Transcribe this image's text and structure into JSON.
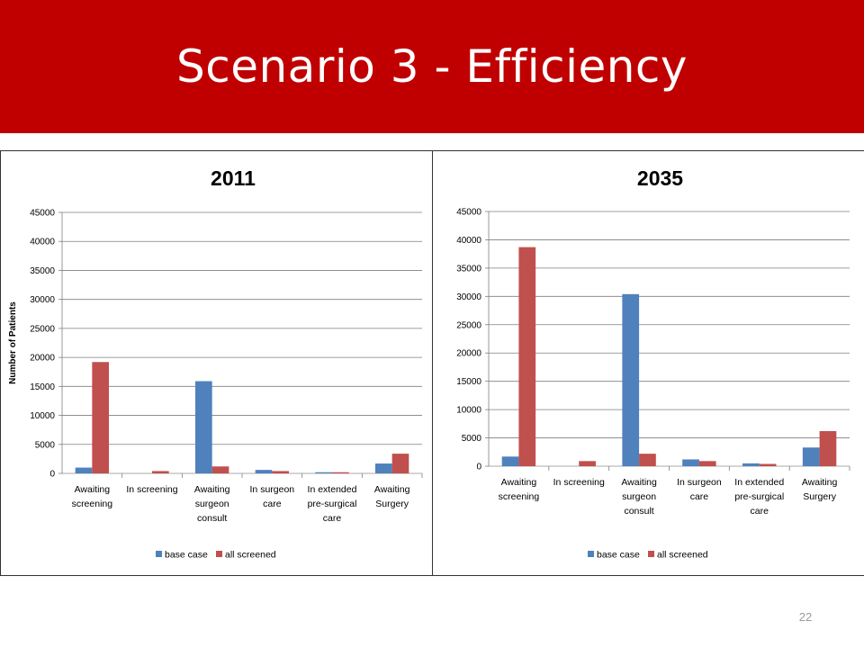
{
  "slide": {
    "title": "Scenario 3 - Efficiency",
    "page_number": "22"
  },
  "colors": {
    "title_bar": "#c00000",
    "base_case": "#4f81bd",
    "all_screened": "#c0504d"
  },
  "chart_data": [
    {
      "type": "bar",
      "title": "2011",
      "ylabel": "Number of Patients",
      "xlabel": "",
      "categories": [
        [
          "Awaiting",
          "screening"
        ],
        [
          "In screening"
        ],
        [
          "Awaiting",
          "surgeon",
          "consult"
        ],
        [
          "In surgeon",
          "care"
        ],
        [
          "In extended",
          "pre-surgical",
          "care"
        ],
        [
          "Awaiting",
          "Surgery"
        ]
      ],
      "series": [
        {
          "name": "base case",
          "values": [
            1000,
            0,
            15900,
            600,
            200,
            1700
          ]
        },
        {
          "name": "all screened",
          "values": [
            19200,
            400,
            1200,
            400,
            200,
            3400
          ]
        }
      ],
      "ylim": [
        0,
        45000
      ],
      "yticks": [
        "0",
        "5000",
        "10000",
        "15000",
        "20000",
        "25000",
        "30000",
        "35000",
        "40000",
        "45000"
      ],
      "grid": true,
      "legend": "bottom"
    },
    {
      "type": "bar",
      "title": "2035",
      "ylabel": "",
      "xlabel": "",
      "categories": [
        [
          "Awaiting",
          "screening"
        ],
        [
          "In screening"
        ],
        [
          "Awaiting",
          "surgeon",
          "consult"
        ],
        [
          "In surgeon",
          "care"
        ],
        [
          "In extended",
          "pre-surgical",
          "care"
        ],
        [
          "Awaiting",
          "Surgery"
        ]
      ],
      "series": [
        {
          "name": "base case",
          "values": [
            1700,
            0,
            30400,
            1200,
            500,
            3300
          ]
        },
        {
          "name": "all screened",
          "values": [
            38700,
            900,
            2200,
            900,
            400,
            6200
          ]
        }
      ],
      "ylim": [
        0,
        45000
      ],
      "yticks": [
        "0",
        "5000",
        "10000",
        "15000",
        "20000",
        "25000",
        "30000",
        "35000",
        "40000",
        "45000"
      ],
      "grid": true,
      "legend": "bottom"
    }
  ]
}
